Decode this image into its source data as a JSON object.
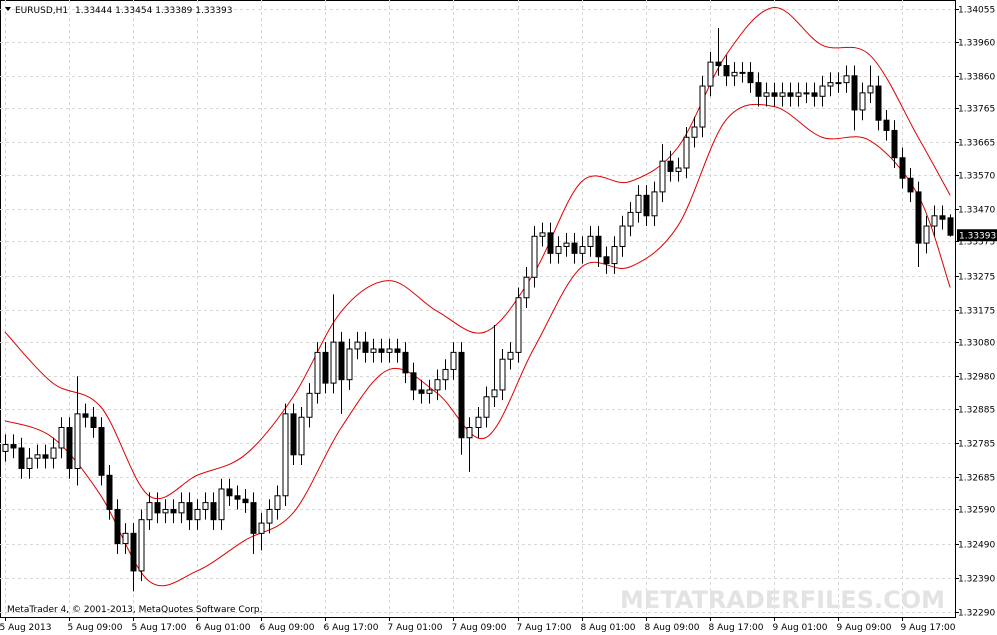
{
  "chart_data": {
    "type": "candlestick",
    "symbol": "EURUSD,H1",
    "footer": "MetaTrader 4, © 2001-2013, MetaQuotes Software Corp.",
    "watermark": "METATRADERFILES.COM",
    "up_color": "#ffffff",
    "down_color": "#000000",
    "outline_color": "#000000",
    "band_color": "#e00000",
    "grid": true,
    "xlim": [
      -0.6,
      118.6
    ],
    "xticks": [
      {
        "value": 0,
        "label": "5 Aug 2013"
      },
      {
        "value": 8,
        "label": "5 Aug 09:00"
      },
      {
        "value": 16,
        "label": "5 Aug 17:00"
      },
      {
        "value": 24,
        "label": "6 Aug 01:00"
      },
      {
        "value": 32,
        "label": "6 Aug 09:00"
      },
      {
        "value": 40,
        "label": "6 Aug 17:00"
      },
      {
        "value": 48,
        "label": "7 Aug 01:00"
      },
      {
        "value": 56,
        "label": "7 Aug 09:00"
      },
      {
        "value": 64,
        "label": "7 Aug 17:00"
      },
      {
        "value": 72,
        "label": "8 Aug 01:00"
      },
      {
        "value": 80,
        "label": "8 Aug 09:00"
      },
      {
        "value": 88,
        "label": "8 Aug 17:00"
      },
      {
        "value": 96,
        "label": "9 Aug 01:00"
      },
      {
        "value": 104,
        "label": "9 Aug 09:00"
      },
      {
        "value": 112,
        "label": "9 Aug 17:00"
      }
    ],
    "ylim": [
      1.32275,
      1.34082
    ],
    "yticks": [
      1.34055,
      {
        "value": 1.3396,
        "label": "1.33960"
      },
      {
        "value": 1.3386,
        "label": "1.33860"
      },
      1.33765,
      1.33665,
      {
        "value": 1.3357,
        "label": "1.33570"
      },
      {
        "value": 1.3347,
        "label": "1.33470"
      },
      1.33375,
      1.33275,
      1.33175,
      {
        "value": 1.3308,
        "label": "1.33080"
      },
      {
        "value": 1.3298,
        "label": "1.32980"
      },
      1.32885,
      1.32785,
      1.32685,
      {
        "value": 1.3259,
        "label": "1.32590"
      },
      {
        "value": 1.3249,
        "label": "1.32490"
      },
      {
        "value": 1.3239,
        "label": "1.32390"
      },
      {
        "value": 1.3229,
        "label": "1.32290"
      }
    ],
    "open": [
      1.3276,
      1.3278,
      1.3277,
      1.3271,
      1.3274,
      1.3275,
      1.3274,
      1.3277,
      1.3283,
      1.3271,
      1.3287,
      1.3286,
      1.3283,
      1.3269,
      1.3259,
      1.3249,
      1.3252,
      1.3241,
      1.3256,
      1.3261,
      1.3258,
      1.3259,
      1.3258,
      1.3261,
      1.3256,
      1.3259,
      1.3261,
      1.3256,
      1.3265,
      1.3263,
      1.3262,
      1.3261,
      1.3252,
      1.3255,
      1.3259,
      1.3263,
      1.3287,
      1.3275,
      1.3286,
      1.3293,
      1.3305,
      1.3296,
      1.3308,
      1.3297,
      1.3306,
      1.3308,
      1.3305,
      1.3306,
      1.3305,
      1.3306,
      1.3305,
      1.3299,
      1.3294,
      1.3293,
      1.3294,
      1.3297,
      1.33,
      1.3305,
      1.328,
      1.3283,
      1.3286,
      1.3292,
      1.3294,
      1.3303,
      1.3305,
      1.3321,
      1.3327,
      1.3339,
      1.334,
      1.3334,
      1.3336,
      1.3337,
      1.3334,
      1.3336,
      1.3339,
      1.3333,
      1.3331,
      1.3336,
      1.3342,
      1.3346,
      1.3351,
      1.3345,
      1.3352,
      1.3361,
      1.3358,
      1.3359,
      1.3368,
      1.3371,
      1.3383,
      1.339,
      1.3389,
      1.3386,
      1.3387,
      1.3387,
      1.3384,
      1.338,
      1.3381,
      1.338,
      1.3381,
      1.338,
      1.3381,
      1.3381,
      1.338,
      1.3383,
      1.3384,
      1.3384,
      1.3386,
      1.3376,
      1.3381,
      1.3383,
      1.3373,
      1.337,
      1.3362,
      1.3356,
      1.3352,
      1.3337,
      1.3342,
      1.3345,
      1.33444
    ],
    "high": [
      1.3281,
      1.3281,
      1.328,
      1.3277,
      1.3278,
      1.3278,
      1.328,
      1.3286,
      1.3286,
      1.3298,
      1.329,
      1.3289,
      1.3286,
      1.3272,
      1.3262,
      1.3255,
      1.3255,
      1.3259,
      1.3264,
      1.3264,
      1.3262,
      1.3262,
      1.3264,
      1.3264,
      1.3262,
      1.3264,
      1.3264,
      1.3268,
      1.3268,
      1.3266,
      1.3265,
      1.3264,
      1.3258,
      1.3262,
      1.3266,
      1.329,
      1.329,
      1.3289,
      1.3296,
      1.3308,
      1.3308,
      1.3322,
      1.3311,
      1.3309,
      1.3311,
      1.3311,
      1.3309,
      1.3309,
      1.3309,
      1.3309,
      1.3308,
      1.3302,
      1.3297,
      1.3297,
      1.33,
      1.3303,
      1.3308,
      1.3308,
      1.3286,
      1.3289,
      1.3295,
      1.3313,
      1.3306,
      1.3308,
      1.3324,
      1.333,
      1.3342,
      1.3343,
      1.3343,
      1.3339,
      1.334,
      1.334,
      1.3339,
      1.3342,
      1.3342,
      1.3336,
      1.3339,
      1.3345,
      1.3349,
      1.3354,
      1.3354,
      1.3355,
      1.3366,
      1.3364,
      1.3362,
      1.3371,
      1.3374,
      1.3386,
      1.3393,
      1.34,
      1.3392,
      1.339,
      1.339,
      1.339,
      1.3387,
      1.3384,
      1.3384,
      1.3384,
      1.3384,
      1.3384,
      1.3384,
      1.3384,
      1.3386,
      1.3387,
      1.3387,
      1.3389,
      1.3389,
      1.3384,
      1.3389,
      1.3386,
      1.3376,
      1.3373,
      1.3365,
      1.3359,
      1.3355,
      1.3345,
      1.3348,
      1.3348,
      1.33454
    ],
    "low": [
      1.3273,
      1.3274,
      1.3268,
      1.3268,
      1.3271,
      1.3271,
      1.3271,
      1.3274,
      1.3268,
      1.3266,
      1.3283,
      1.328,
      1.3266,
      1.3256,
      1.3246,
      1.3246,
      1.3235,
      1.3238,
      1.3253,
      1.3255,
      1.3255,
      1.3255,
      1.3255,
      1.3253,
      1.3253,
      1.3256,
      1.3253,
      1.3253,
      1.326,
      1.3259,
      1.3258,
      1.3246,
      1.3247,
      1.3252,
      1.3256,
      1.326,
      1.3272,
      1.3272,
      1.3283,
      1.329,
      1.3293,
      1.3293,
      1.3287,
      1.3294,
      1.3303,
      1.3302,
      1.3302,
      1.3302,
      1.3302,
      1.3302,
      1.3296,
      1.3291,
      1.329,
      1.329,
      1.3291,
      1.3294,
      1.3297,
      1.3275,
      1.327,
      1.328,
      1.3283,
      1.3289,
      1.3291,
      1.33,
      1.3302,
      1.3318,
      1.3324,
      1.3336,
      1.3331,
      1.3331,
      1.3333,
      1.3331,
      1.3331,
      1.3333,
      1.333,
      1.3328,
      1.3328,
      1.3333,
      1.3339,
      1.3343,
      1.3342,
      1.3342,
      1.3349,
      1.3355,
      1.3355,
      1.3356,
      1.3365,
      1.3368,
      1.338,
      1.3386,
      1.3383,
      1.3383,
      1.3384,
      1.3381,
      1.3377,
      1.3377,
      1.3377,
      1.3377,
      1.3377,
      1.3377,
      1.3378,
      1.3377,
      1.3377,
      1.338,
      1.3381,
      1.3381,
      1.337,
      1.3373,
      1.3378,
      1.337,
      1.3367,
      1.3359,
      1.3353,
      1.3349,
      1.333,
      1.3334,
      1.3339,
      1.3341,
      1.33389
    ],
    "close": [
      1.3278,
      1.3277,
      1.3271,
      1.3274,
      1.3275,
      1.3274,
      1.3277,
      1.3283,
      1.3271,
      1.3287,
      1.3286,
      1.3283,
      1.3269,
      1.3259,
      1.3249,
      1.3252,
      1.3241,
      1.3256,
      1.3261,
      1.3258,
      1.3259,
      1.3258,
      1.3261,
      1.3256,
      1.3259,
      1.3261,
      1.3256,
      1.3265,
      1.3263,
      1.3262,
      1.3261,
      1.3252,
      1.3255,
      1.3259,
      1.3263,
      1.3287,
      1.3275,
      1.3286,
      1.3293,
      1.3305,
      1.3296,
      1.3308,
      1.3297,
      1.3306,
      1.3308,
      1.3305,
      1.3306,
      1.3305,
      1.3306,
      1.3305,
      1.3299,
      1.3294,
      1.3293,
      1.3294,
      1.3297,
      1.33,
      1.3305,
      1.328,
      1.3283,
      1.3286,
      1.3292,
      1.3294,
      1.3303,
      1.3305,
      1.3321,
      1.3327,
      1.3339,
      1.334,
      1.3334,
      1.3336,
      1.3337,
      1.3334,
      1.3336,
      1.3339,
      1.3333,
      1.3331,
      1.3336,
      1.3342,
      1.3346,
      1.3351,
      1.3345,
      1.3352,
      1.3361,
      1.3358,
      1.3359,
      1.3368,
      1.3371,
      1.3383,
      1.339,
      1.3389,
      1.3386,
      1.3387,
      1.3387,
      1.3384,
      1.338,
      1.3381,
      1.338,
      1.3381,
      1.338,
      1.3381,
      1.3381,
      1.338,
      1.3383,
      1.3384,
      1.3384,
      1.3386,
      1.3376,
      1.3381,
      1.3383,
      1.3373,
      1.337,
      1.3362,
      1.3356,
      1.3352,
      1.3337,
      1.3342,
      1.3345,
      1.3344,
      1.33393
    ],
    "bands": [
      {
        "x": [
          0,
          6,
          12,
          18,
          24,
          30,
          36,
          42,
          48,
          54,
          60,
          66,
          72,
          78,
          84,
          90,
          96,
          102,
          108,
          114,
          118
        ],
        "values": [
          1.3311,
          1.3296,
          1.3289,
          1.3263,
          1.3269,
          1.3275,
          1.3292,
          1.3317,
          1.3326,
          1.3317,
          1.3311,
          1.3328,
          1.3355,
          1.3355,
          1.3365,
          1.3392,
          1.3406,
          1.3395,
          1.3392,
          1.3368,
          1.3351
        ]
      },
      {
        "x": [
          0,
          6,
          12,
          18,
          24,
          30,
          36,
          42,
          48,
          54,
          60,
          66,
          72,
          78,
          84,
          90,
          96,
          102,
          108,
          114,
          118
        ],
        "values": [
          1.3285,
          1.328,
          1.3263,
          1.3238,
          1.3241,
          1.325,
          1.3258,
          1.3283,
          1.33,
          1.3293,
          1.328,
          1.3306,
          1.333,
          1.333,
          1.3342,
          1.3373,
          1.3377,
          1.3368,
          1.3367,
          1.3351,
          1.3324
        ]
      }
    ]
  }
}
